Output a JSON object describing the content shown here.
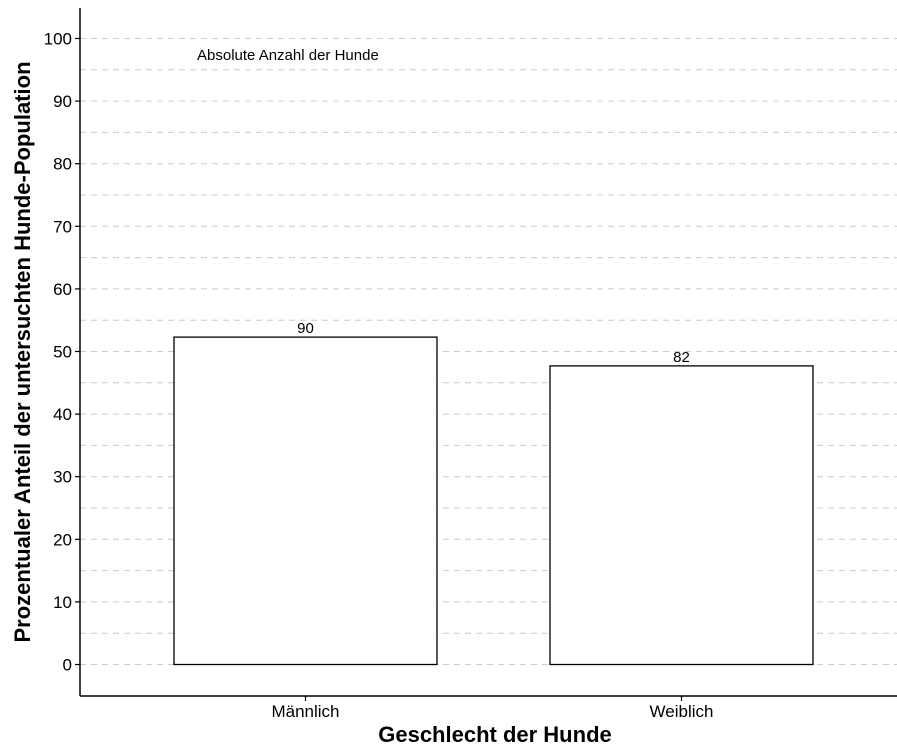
{
  "chart_data": {
    "type": "bar",
    "categories": [
      "Männlich",
      "Weiblich"
    ],
    "values": [
      52.3,
      47.7
    ],
    "data_labels": [
      "90",
      "82"
    ],
    "xlabel": "Geschlecht der Hunde",
    "ylabel": "Prozentualer Anteil der untersuchten Hunde-Population",
    "ylim": [
      0,
      105
    ],
    "yticks": [
      0,
      10,
      20,
      30,
      40,
      50,
      60,
      70,
      80,
      90,
      100
    ],
    "grid": "horizontal-dashed",
    "annotation": "Absolute Anzahl der Hunde",
    "bar_fill": "#ffffff",
    "bar_stroke": "#000000",
    "grid_color": "#cccccc"
  }
}
